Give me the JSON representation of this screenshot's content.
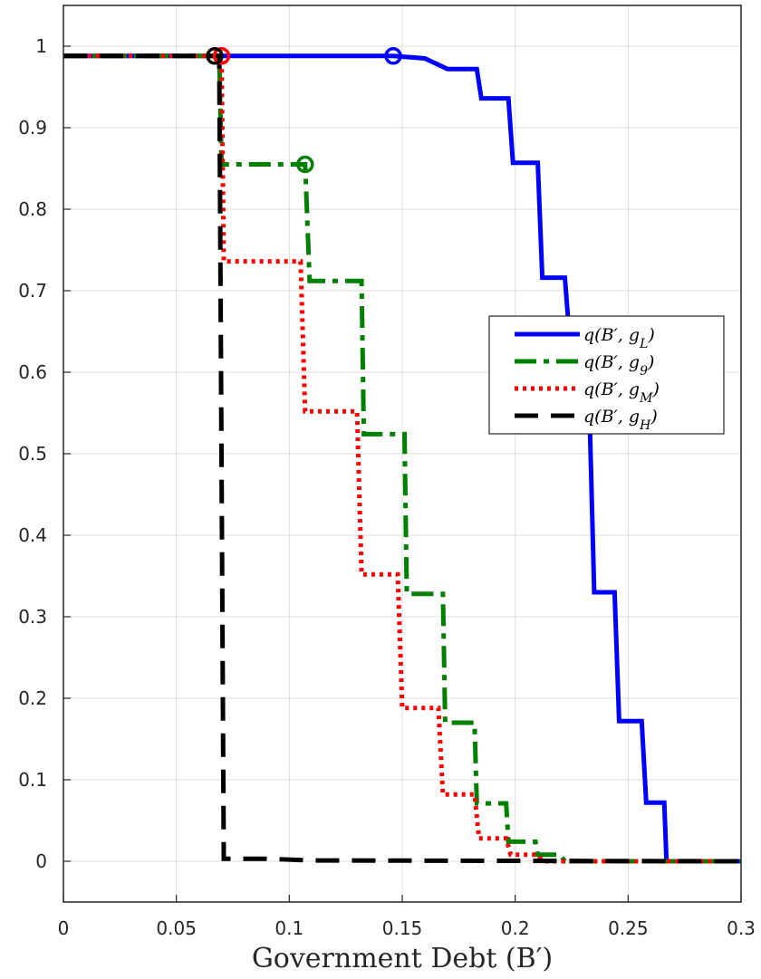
{
  "chart_data": {
    "type": "line",
    "title": "",
    "xlabel": "Government Debt (B′)",
    "ylabel": "",
    "xlim": [
      0,
      0.3
    ],
    "ylim": [
      -0.05,
      1.05
    ],
    "grid": true,
    "x_ticks": [
      0,
      0.05,
      0.1,
      0.15,
      0.2,
      0.25,
      0.3
    ],
    "x_tick_labels": [
      "0",
      "0.05",
      "0.1",
      "0.15",
      "0.2",
      "0.25",
      "0.3"
    ],
    "y_ticks": [
      0,
      0.1,
      0.2,
      0.3,
      0.4,
      0.5,
      0.6,
      0.7,
      0.8,
      0.9,
      1
    ],
    "y_tick_labels": [
      "0",
      "0.1",
      "0.2",
      "0.3",
      "0.4",
      "0.5",
      "0.6",
      "0.7",
      "0.8",
      "0.9",
      "1"
    ],
    "legend_position": "right",
    "series": [
      {
        "name": "q(B′, g_L)",
        "color": "#0000ff",
        "style": "solid",
        "marker": {
          "x": 0.146,
          "y": 0.988
        },
        "points": [
          [
            0,
            0.988
          ],
          [
            0.146,
            0.988
          ],
          [
            0.16,
            0.985
          ],
          [
            0.17,
            0.972
          ],
          [
            0.183,
            0.972
          ],
          [
            0.185,
            0.936
          ],
          [
            0.197,
            0.936
          ],
          [
            0.199,
            0.857
          ],
          [
            0.21,
            0.857
          ],
          [
            0.212,
            0.716
          ],
          [
            0.222,
            0.716
          ],
          [
            0.224,
            0.645
          ],
          [
            0.232,
            0.645
          ],
          [
            0.235,
            0.33
          ],
          [
            0.244,
            0.33
          ],
          [
            0.246,
            0.172
          ],
          [
            0.256,
            0.172
          ],
          [
            0.258,
            0.072
          ],
          [
            0.266,
            0.072
          ],
          [
            0.267,
            0
          ],
          [
            0.3,
            0
          ]
        ]
      },
      {
        "name": "q(B′, g_9)",
        "color": "#008000",
        "style": "dashdot",
        "marker": {
          "x": 0.107,
          "y": 0.855
        },
        "points": [
          [
            0,
            0.988
          ],
          [
            0.069,
            0.988
          ],
          [
            0.07,
            0.855
          ],
          [
            0.107,
            0.855
          ],
          [
            0.109,
            0.712
          ],
          [
            0.132,
            0.712
          ],
          [
            0.133,
            0.524
          ],
          [
            0.151,
            0.524
          ],
          [
            0.152,
            0.328
          ],
          [
            0.168,
            0.328
          ],
          [
            0.169,
            0.17
          ],
          [
            0.182,
            0.17
          ],
          [
            0.183,
            0.071
          ],
          [
            0.196,
            0.071
          ],
          [
            0.197,
            0.024
          ],
          [
            0.209,
            0.024
          ],
          [
            0.21,
            0.008
          ],
          [
            0.22,
            0.008
          ],
          [
            0.222,
            0
          ],
          [
            0.3,
            0
          ]
        ]
      },
      {
        "name": "q(B′, g_M)",
        "color": "#ff0000",
        "style": "dotted",
        "marker": {
          "x": 0.07,
          "y": 0.988
        },
        "points": [
          [
            0,
            0.988
          ],
          [
            0.07,
            0.988
          ],
          [
            0.071,
            0.736
          ],
          [
            0.105,
            0.736
          ],
          [
            0.107,
            0.552
          ],
          [
            0.13,
            0.552
          ],
          [
            0.132,
            0.352
          ],
          [
            0.148,
            0.352
          ],
          [
            0.15,
            0.188
          ],
          [
            0.166,
            0.188
          ],
          [
            0.168,
            0.082
          ],
          [
            0.182,
            0.082
          ],
          [
            0.184,
            0.028
          ],
          [
            0.196,
            0.028
          ],
          [
            0.198,
            0.008
          ],
          [
            0.21,
            0.008
          ],
          [
            0.212,
            0
          ],
          [
            0.3,
            0
          ]
        ]
      },
      {
        "name": "q(B′, g_H)",
        "color": "#000000",
        "style": "dashed",
        "marker": {
          "x": 0.067,
          "y": 0.988
        },
        "points": [
          [
            0,
            0.988
          ],
          [
            0.069,
            0.988
          ],
          [
            0.071,
            0.003
          ],
          [
            0.09,
            0.003
          ],
          [
            0.11,
            0.001
          ],
          [
            0.3,
            0
          ]
        ]
      }
    ]
  }
}
